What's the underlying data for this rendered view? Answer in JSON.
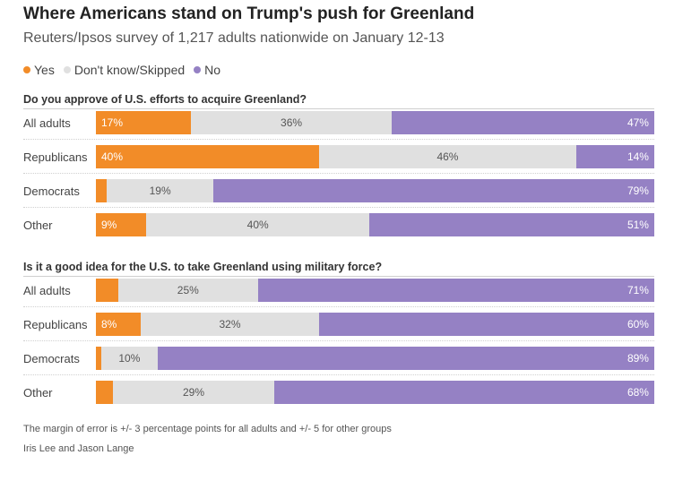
{
  "chart_data": {
    "type": "bar",
    "stacked": true,
    "orientation": "horizontal",
    "title": "Where Americans stand on Trump's push for Greenland",
    "subtitle": "Reuters/Ipsos survey of 1,217 adults nationwide on January 12-13",
    "legend": [
      {
        "name": "Yes",
        "color": "#f28c28"
      },
      {
        "name": "Don't know/Skipped",
        "color": "#e0e0e0"
      },
      {
        "name": "No",
        "color": "#9581c4"
      }
    ],
    "panels": [
      {
        "question": "Do you approve of U.S. efforts to acquire Greenland?",
        "categories": [
          "All adults",
          "Republicans",
          "Democrats",
          "Other"
        ],
        "series": [
          {
            "name": "Yes",
            "values": [
              17,
              40,
              2,
              9
            ],
            "labels": [
              "17%",
              "40%",
              "",
              "9%"
            ]
          },
          {
            "name": "Don't know/Skipped",
            "values": [
              36,
              46,
              19,
              40
            ],
            "labels": [
              "36%",
              "46%",
              "19%",
              "40%"
            ]
          },
          {
            "name": "No",
            "values": [
              47,
              14,
              79,
              51
            ],
            "labels": [
              "47%",
              "14%",
              "79%",
              "51%"
            ]
          }
        ]
      },
      {
        "question": "Is it a good idea for the U.S. to take Greenland using military force?",
        "categories": [
          "All adults",
          "Republicans",
          "Democrats",
          "Other"
        ],
        "series": [
          {
            "name": "Yes",
            "values": [
              4,
              8,
              1,
              3
            ],
            "labels": [
              "",
              "8%",
              "",
              ""
            ]
          },
          {
            "name": "Don't know/Skipped",
            "values": [
              25,
              32,
              10,
              29
            ],
            "labels": [
              "25%",
              "32%",
              "10%",
              "29%"
            ]
          },
          {
            "name": "No",
            "values": [
              71,
              60,
              89,
              68
            ],
            "labels": [
              "71%",
              "60%",
              "89%",
              "68%"
            ]
          }
        ]
      }
    ],
    "xlim": [
      0,
      100
    ]
  },
  "footer": {
    "note": "The margin of error is +/- 3 percentage points for all adults and +/- 5 for other groups",
    "credit": "Iris Lee and Jason Lange"
  }
}
